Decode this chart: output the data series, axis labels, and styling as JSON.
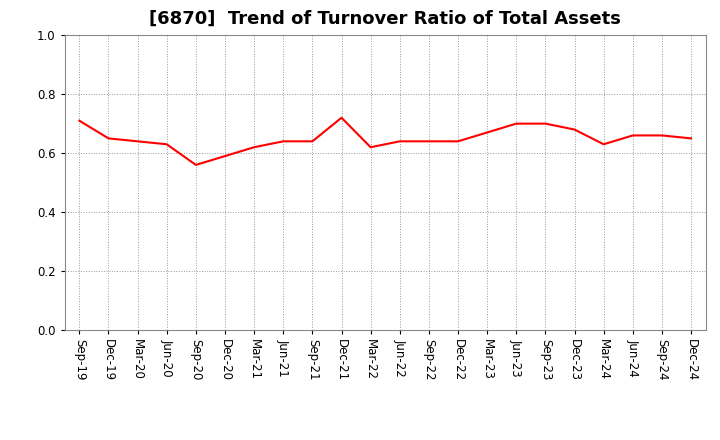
{
  "title": "[6870]  Trend of Turnover Ratio of Total Assets",
  "line_color": "#FF0000",
  "background_color": "#FFFFFF",
  "grid_color": "#999999",
  "ylim": [
    0.0,
    1.0
  ],
  "yticks": [
    0.0,
    0.2,
    0.4,
    0.6,
    0.8,
    1.0
  ],
  "labels": [
    "Sep-19",
    "Dec-19",
    "Mar-20",
    "Jun-20",
    "Sep-20",
    "Dec-20",
    "Mar-21",
    "Jun-21",
    "Sep-21",
    "Dec-21",
    "Mar-22",
    "Jun-22",
    "Sep-22",
    "Dec-22",
    "Mar-23",
    "Jun-23",
    "Sep-23",
    "Dec-23",
    "Mar-24",
    "Jun-24",
    "Sep-24",
    "Dec-24"
  ],
  "values": [
    0.71,
    0.65,
    0.64,
    0.63,
    0.56,
    0.59,
    0.62,
    0.64,
    0.64,
    0.72,
    0.62,
    0.64,
    0.64,
    0.64,
    0.67,
    0.7,
    0.7,
    0.68,
    0.63,
    0.66,
    0.66,
    0.65
  ],
  "title_fontsize": 13,
  "tick_fontsize": 8.5,
  "line_width": 1.5
}
